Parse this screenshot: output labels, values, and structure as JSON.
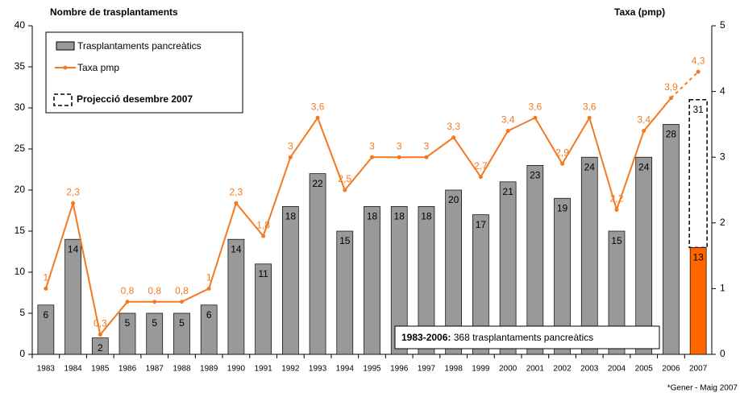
{
  "chart_data": {
    "type": "bar_line",
    "title": "Nombre de trasplantaments",
    "y2_title": "Taxa (pmp)",
    "categories": [
      "1983",
      "1984",
      "1985",
      "1986",
      "1987",
      "1988",
      "1989",
      "1990",
      "1991",
      "1992",
      "1993",
      "1994",
      "1995",
      "1996",
      "1997",
      "1998",
      "1999",
      "2000",
      "2001",
      "2002",
      "2003",
      "2004",
      "2005",
      "2006",
      "2007"
    ],
    "series": [
      {
        "name": "Trasplantaments pancreàtics",
        "type": "bar",
        "color": "#999999",
        "colors": [
          "#999999",
          "#999999",
          "#999999",
          "#999999",
          "#999999",
          "#999999",
          "#999999",
          "#999999",
          "#999999",
          "#999999",
          "#999999",
          "#999999",
          "#999999",
          "#999999",
          "#999999",
          "#999999",
          "#999999",
          "#999999",
          "#999999",
          "#999999",
          "#999999",
          "#999999",
          "#999999",
          "#999999",
          "#ff6600"
        ],
        "values": [
          6,
          14,
          2,
          5,
          5,
          5,
          6,
          14,
          11,
          18,
          22,
          15,
          18,
          18,
          18,
          20,
          17,
          21,
          23,
          19,
          24,
          15,
          24,
          28,
          13
        ]
      },
      {
        "name": "Taxa pmp",
        "type": "line",
        "axis": "y2",
        "color": "#f47920",
        "values": [
          1,
          2.3,
          0.3,
          0.8,
          0.8,
          0.8,
          1,
          2.3,
          1.8,
          3,
          3.6,
          2.5,
          3,
          3,
          3,
          3.3,
          2.7,
          3.4,
          3.6,
          2.9,
          3.6,
          2.2,
          3.4,
          3.9,
          4.3
        ],
        "value_labels": [
          "1",
          "2,3",
          "0,3",
          "0,8",
          "0,8",
          "0,8",
          "1",
          "2,3",
          "1,8",
          "3",
          "3,6",
          "2,5",
          "3",
          "3",
          "3",
          "3,3",
          "2,7",
          "3,4",
          "3,6",
          "2,9",
          "3,6",
          "2,2",
          "3,4",
          "3,9",
          "4,3"
        ]
      }
    ],
    "projection": {
      "name": "Projecció desembre 2007",
      "category": "2007",
      "value": 31
    },
    "annotation": {
      "bold": "1983-2006:",
      "text": " 368 trasplantaments pancreàtics"
    },
    "footnote": "*Gener - Maig 2007",
    "ylim": [
      0,
      40
    ],
    "yticks": [
      0,
      5,
      10,
      15,
      20,
      25,
      30,
      35,
      40
    ],
    "y2lim": [
      0,
      5
    ],
    "y2ticks": [
      0,
      1,
      2,
      3,
      4,
      5
    ]
  }
}
